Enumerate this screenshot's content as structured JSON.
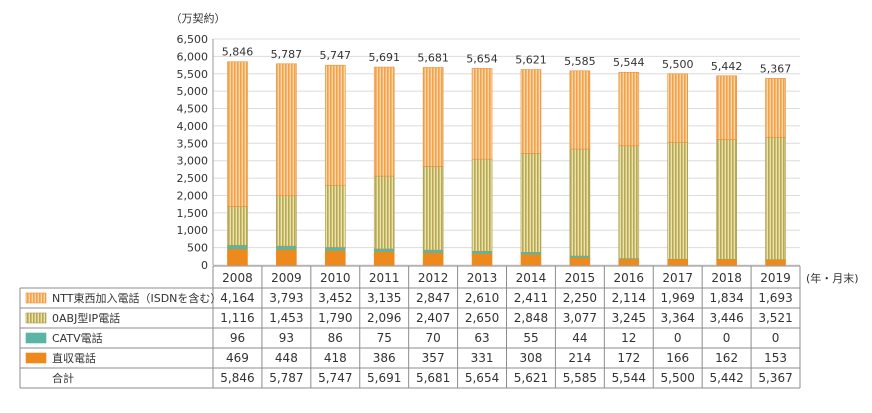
{
  "chart_data": {
    "type": "bar",
    "stacked": true,
    "unit_label": "（万契約）",
    "x_suffix": "(年・月末)",
    "categories": [
      "2008",
      "2009",
      "2010",
      "2011",
      "2012",
      "2013",
      "2014",
      "2015",
      "2016",
      "2017",
      "2018",
      "2019"
    ],
    "ylim": [
      0,
      6500
    ],
    "yticks": [
      0,
      500,
      1000,
      1500,
      2000,
      2500,
      3000,
      3500,
      4000,
      4500,
      5000,
      5500,
      6000,
      6500
    ],
    "series": [
      {
        "name": "NTT東西加入電話（ISDNを含む）",
        "color": "#f6a650",
        "pattern": "vstripe",
        "values": [
          4164,
          3793,
          3452,
          3135,
          2847,
          2610,
          2411,
          2250,
          2114,
          1969,
          1834,
          1693
        ]
      },
      {
        "name": "0ABJ型IP電話",
        "color": "#d2c57a",
        "pattern": "vstripe-olive",
        "values": [
          1116,
          1453,
          1790,
          2096,
          2407,
          2650,
          2848,
          3077,
          3245,
          3364,
          3446,
          3521
        ]
      },
      {
        "name": "CATV電話",
        "color": "#5bb5a5",
        "pattern": "solid",
        "values": [
          96,
          93,
          86,
          75,
          70,
          63,
          55,
          44,
          12,
          0,
          0,
          0
        ]
      },
      {
        "name": "直収電話",
        "color": "#ee8a1c",
        "pattern": "solid",
        "values": [
          469,
          448,
          418,
          386,
          357,
          331,
          308,
          214,
          172,
          166,
          162,
          153
        ]
      }
    ],
    "total": {
      "name": "合計",
      "values": [
        5846,
        5787,
        5747,
        5691,
        5681,
        5654,
        5621,
        5585,
        5544,
        5500,
        5442,
        5367
      ]
    }
  }
}
